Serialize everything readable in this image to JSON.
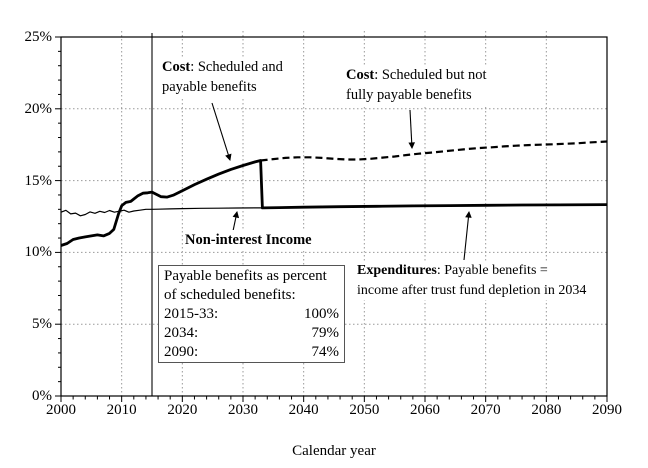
{
  "chart_data": {
    "type": "line",
    "title": "",
    "xlabel": "Calendar year",
    "ylabel": "",
    "xlim": [
      2000,
      2090
    ],
    "ylim": [
      0,
      25
    ],
    "x_ticks": [
      2000,
      2010,
      2020,
      2030,
      2040,
      2050,
      2060,
      2070,
      2080,
      2090
    ],
    "x_tick_labels": [
      "2000",
      "2010",
      "2020",
      "2030",
      "2040",
      "2050",
      "2060",
      "2070",
      "2080",
      "2090"
    ],
    "y_ticks": [
      0,
      5,
      10,
      15,
      20,
      25
    ],
    "y_tick_labels": [
      "0%",
      "5%",
      "10%",
      "15%",
      "20%",
      "25%"
    ],
    "x_minor_step": 2,
    "y_minor_step": 1,
    "grid": "dotted",
    "grid_color": "#9a9a9a",
    "line_color": "#000000",
    "vertical_reference_line": 2015,
    "legend_position": "annotations-on-plot",
    "series": [
      {
        "name": "Non-interest Income",
        "style": "thin-solid",
        "points": [
          [
            2000,
            12.8
          ],
          [
            2000.8,
            12.93
          ],
          [
            2001.6,
            12.68
          ],
          [
            2002.4,
            12.74
          ],
          [
            2003.2,
            12.55
          ],
          [
            2004,
            12.64
          ],
          [
            2004.8,
            12.82
          ],
          [
            2005.6,
            12.72
          ],
          [
            2006.4,
            12.86
          ],
          [
            2007.2,
            12.78
          ],
          [
            2008,
            12.92
          ],
          [
            2008.8,
            12.8
          ],
          [
            2009.6,
            12.87
          ],
          [
            2010.4,
            12.94
          ],
          [
            2011.2,
            12.8
          ],
          [
            2012,
            12.88
          ],
          [
            2013,
            12.94
          ],
          [
            2014,
            13.0
          ],
          [
            2015,
            13.0
          ],
          [
            2016,
            13.01
          ],
          [
            2018,
            13.03
          ],
          [
            2020,
            13.05
          ],
          [
            2023,
            13.07
          ],
          [
            2026,
            13.08
          ],
          [
            2029,
            13.09
          ],
          [
            2032,
            13.1
          ],
          [
            2034,
            13.1
          ],
          [
            2040,
            13.15
          ],
          [
            2046,
            13.18
          ],
          [
            2052,
            13.21
          ],
          [
            2058,
            13.24
          ],
          [
            2064,
            13.26
          ],
          [
            2070,
            13.28
          ],
          [
            2076,
            13.3
          ],
          [
            2082,
            13.31
          ],
          [
            2090,
            13.33
          ]
        ]
      },
      {
        "name": "Cost: Scheduled and payable benefits (Expenditures after trust fund depletion in 2034)",
        "style": "thick-solid",
        "points": [
          [
            2000,
            10.48
          ],
          [
            2001,
            10.62
          ],
          [
            2002,
            10.9
          ],
          [
            2003,
            11.0
          ],
          [
            2004,
            11.08
          ],
          [
            2005,
            11.15
          ],
          [
            2006,
            11.22
          ],
          [
            2007,
            11.15
          ],
          [
            2008,
            11.32
          ],
          [
            2008.7,
            11.6
          ],
          [
            2009.5,
            12.7
          ],
          [
            2010,
            13.25
          ],
          [
            2010.7,
            13.48
          ],
          [
            2011.5,
            13.55
          ],
          [
            2012,
            13.72
          ],
          [
            2012.7,
            13.95
          ],
          [
            2013.5,
            14.12
          ],
          [
            2014.3,
            14.15
          ],
          [
            2015,
            14.2
          ],
          [
            2015.7,
            14.05
          ],
          [
            2016.5,
            13.88
          ],
          [
            2017.5,
            13.85
          ],
          [
            2018.5,
            13.98
          ],
          [
            2020,
            14.3
          ],
          [
            2022,
            14.72
          ],
          [
            2024,
            15.1
          ],
          [
            2026,
            15.45
          ],
          [
            2028,
            15.78
          ],
          [
            2030,
            16.05
          ],
          [
            2032,
            16.3
          ],
          [
            2032.9,
            16.4
          ],
          [
            2033.2,
            13.1
          ],
          [
            2036,
            13.12
          ],
          [
            2040,
            13.15
          ],
          [
            2046,
            13.18
          ],
          [
            2052,
            13.21
          ],
          [
            2058,
            13.24
          ],
          [
            2064,
            13.26
          ],
          [
            2070,
            13.28
          ],
          [
            2076,
            13.3
          ],
          [
            2082,
            13.31
          ],
          [
            2090,
            13.33
          ]
        ]
      },
      {
        "name": "Cost: Scheduled but not fully payable benefits",
        "style": "thick-dashed",
        "points": [
          [
            2032.9,
            16.4
          ],
          [
            2035,
            16.5
          ],
          [
            2037,
            16.58
          ],
          [
            2039,
            16.62
          ],
          [
            2041,
            16.62
          ],
          [
            2043,
            16.58
          ],
          [
            2045,
            16.52
          ],
          [
            2047,
            16.47
          ],
          [
            2049,
            16.47
          ],
          [
            2051,
            16.52
          ],
          [
            2053,
            16.6
          ],
          [
            2055,
            16.68
          ],
          [
            2057,
            16.78
          ],
          [
            2059,
            16.87
          ],
          [
            2061,
            16.95
          ],
          [
            2063,
            17.03
          ],
          [
            2065,
            17.12
          ],
          [
            2067,
            17.2
          ],
          [
            2069,
            17.27
          ],
          [
            2071,
            17.32
          ],
          [
            2073,
            17.38
          ],
          [
            2075,
            17.43
          ],
          [
            2077,
            17.47
          ],
          [
            2079,
            17.5
          ],
          [
            2081,
            17.53
          ],
          [
            2083,
            17.56
          ],
          [
            2085,
            17.6
          ],
          [
            2087,
            17.65
          ],
          [
            2090,
            17.72
          ]
        ]
      }
    ]
  },
  "annotations": {
    "cost_payable": {
      "bold": "Cost",
      "line1_rest": ": Scheduled and",
      "line2": "payable benefits"
    },
    "cost_scheduled": {
      "bold": "Cost",
      "line1_rest": ": Scheduled but not",
      "line2": "fully payable benefits"
    },
    "non_interest_income": {
      "text": "Non-interest Income"
    },
    "expenditures": {
      "bold": "Expenditures",
      "line1_rest": ": Payable benefits =",
      "line2": "income after trust fund depletion in 2034"
    },
    "info_box": {
      "line1": "Payable benefits as percent",
      "line2": "of scheduled benefits:",
      "rows": [
        {
          "label": "2015-33:",
          "value": "100%"
        },
        {
          "label": "2034:",
          "value": "79%"
        },
        {
          "label": "2090:",
          "value": "74%"
        }
      ]
    }
  }
}
